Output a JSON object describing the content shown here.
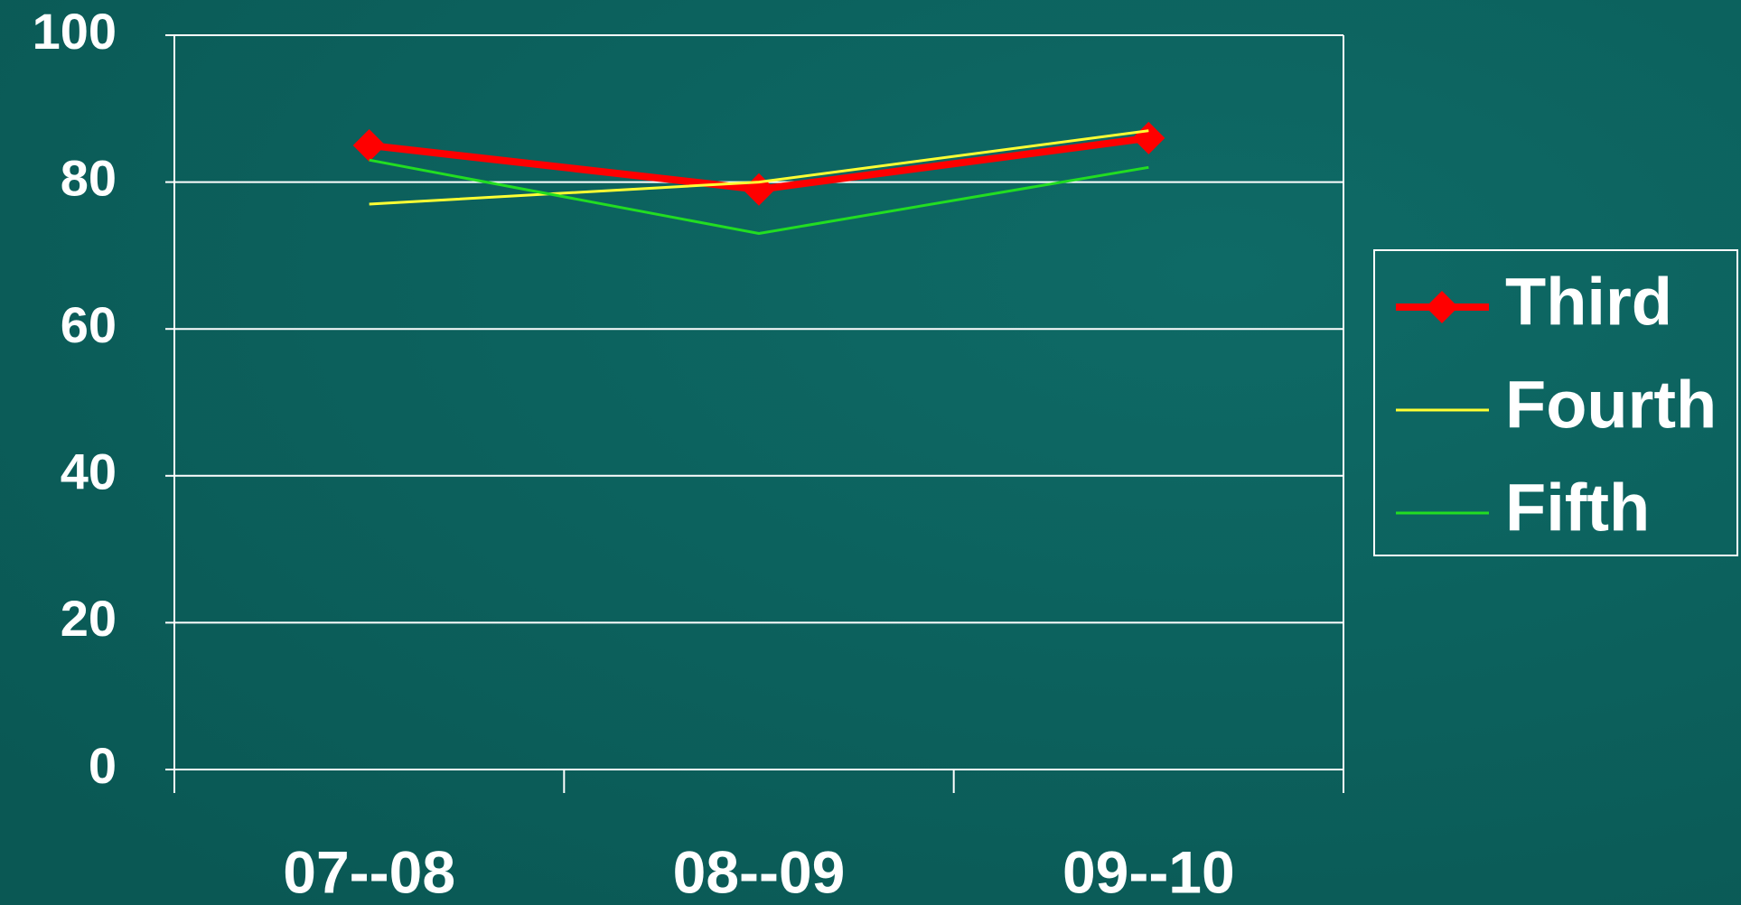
{
  "chart_data": {
    "type": "line",
    "categories": [
      "07--08",
      "08--09",
      "09--10"
    ],
    "series": [
      {
        "name": "Third",
        "color": "#ff0000",
        "values": [
          85,
          79,
          86
        ]
      },
      {
        "name": "Fourth",
        "color": "#ffff33",
        "values": [
          77,
          80,
          87
        ]
      },
      {
        "name": "Fifth",
        "color": "#22dd22",
        "values": [
          83,
          73,
          82
        ]
      }
    ],
    "ylim": [
      0,
      100
    ],
    "yticks": [
      0,
      20,
      40,
      60,
      80,
      100
    ],
    "grid": true,
    "legend": "right"
  }
}
